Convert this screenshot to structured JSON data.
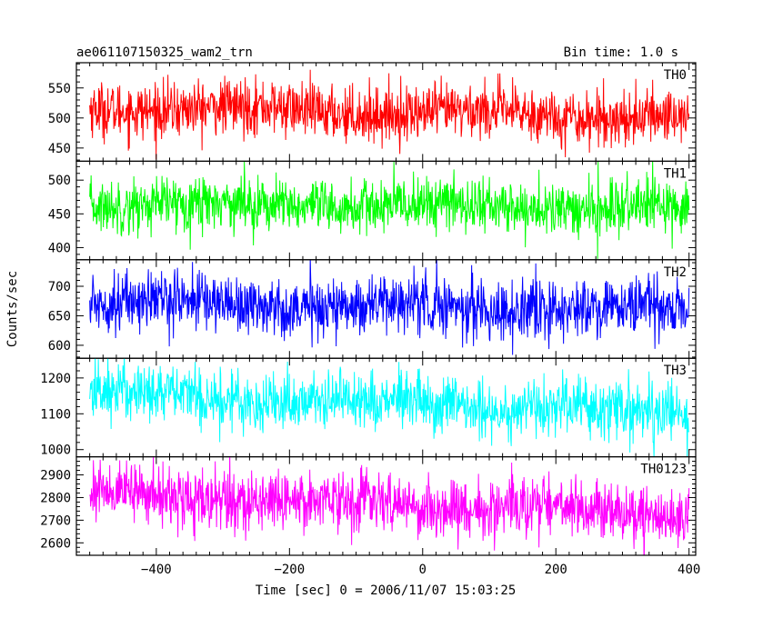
{
  "header": {
    "title": "ae061107150325_wam2_trn",
    "bin_time": "Bin time: 1.0 s"
  },
  "chart_data": {
    "type": "line",
    "xlabel": "Time [sec] 0 = 2006/11/07 15:03:25",
    "ylabel": "Counts/sec",
    "xlim": [
      -520,
      410
    ],
    "x_ticks": [
      -400,
      -200,
      0,
      200,
      400
    ],
    "x_tick_labels": [
      "−400",
      "−200",
      "0",
      "200",
      "400"
    ],
    "x_range": [
      -500,
      400
    ],
    "grid": false,
    "panels": [
      {
        "name": "TH0",
        "color": "#ff0000",
        "ylim": [
          428,
          592
        ],
        "yticks": [
          450,
          500,
          550
        ],
        "mean_start": 518,
        "mean_end": 502,
        "noise_sd": 23,
        "trend": "slightly decreasing"
      },
      {
        "name": "TH1",
        "color": "#00ff00",
        "ylim": [
          382,
          528
        ],
        "yticks": [
          400,
          450,
          500
        ],
        "mean_start": 465,
        "mean_end": 458,
        "noise_sd": 20,
        "trend": "flat"
      },
      {
        "name": "TH2",
        "color": "#0000ff",
        "ylim": [
          578,
          745
        ],
        "yticks": [
          600,
          650,
          700
        ],
        "mean_start": 675,
        "mean_end": 658,
        "noise_sd": 25,
        "trend": "slightly decreasing"
      },
      {
        "name": "TH3",
        "color": "#00ffff",
        "ylim": [
          980,
          1255
        ],
        "yticks": [
          1000,
          1100,
          1200
        ],
        "mean_start": 1160,
        "mean_end": 1100,
        "noise_sd": 42,
        "trend": "decreasing"
      },
      {
        "name": "TH0123",
        "color": "#ff00ff",
        "ylim": [
          2545,
          2980
        ],
        "yticks": [
          2600,
          2700,
          2800,
          2900
        ],
        "mean_start": 2820,
        "mean_end": 2725,
        "noise_sd": 65,
        "trend": "decreasing"
      }
    ]
  }
}
